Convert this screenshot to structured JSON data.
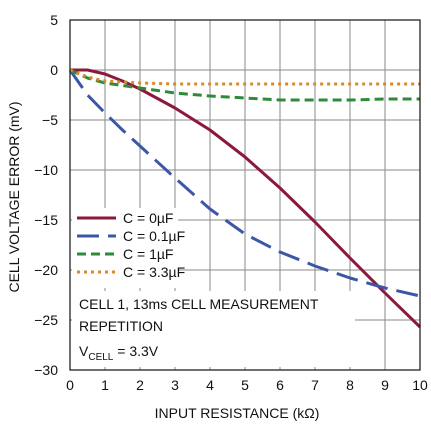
{
  "chart_data": {
    "type": "line",
    "title": "",
    "xlabel": "INPUT RESISTANCE (kΩ)",
    "ylabel": "CELL VOLTAGE ERROR (mV)",
    "xlim": [
      0,
      10
    ],
    "ylim": [
      -30,
      5
    ],
    "x_ticks": [
      "0",
      "1",
      "2",
      "3",
      "4",
      "5",
      "6",
      "7",
      "8",
      "9",
      "10"
    ],
    "y_ticks": [
      "5",
      "0",
      "−5",
      "−10",
      "−15",
      "−20",
      "−25",
      "−30"
    ],
    "grid": true,
    "legend_position": "lower-left",
    "series": [
      {
        "name": "C = 0µF",
        "color": "#8b1a3a",
        "dash": "solid",
        "x": [
          0,
          0.5,
          1,
          1.5,
          2,
          3,
          4,
          5,
          6,
          7,
          8,
          9,
          10
        ],
        "y": [
          0,
          0,
          -0.4,
          -1.1,
          -1.9,
          -3.8,
          -6.0,
          -8.7,
          -11.8,
          -15.2,
          -18.8,
          -22.3,
          -25.7
        ]
      },
      {
        "name": "C = 0.1µF",
        "color": "#3b57a6",
        "dash": "long-dash",
        "x": [
          0,
          0.5,
          1,
          1.5,
          2,
          3,
          4,
          5,
          6,
          7,
          8,
          9,
          10
        ],
        "y": [
          0,
          -2.5,
          -4.3,
          -6.0,
          -7.6,
          -10.8,
          -13.9,
          -16.4,
          -18.2,
          -19.6,
          -20.8,
          -21.8,
          -22.6
        ]
      },
      {
        "name": "C = 1µF",
        "color": "#2e8b3a",
        "dash": "dash",
        "x": [
          0,
          0.5,
          1,
          2,
          3,
          4,
          5,
          6,
          7,
          8,
          9,
          10
        ],
        "y": [
          0,
          -0.8,
          -1.3,
          -1.8,
          -2.3,
          -2.6,
          -2.8,
          -3.0,
          -3.0,
          -3.0,
          -2.9,
          -2.9
        ]
      },
      {
        "name": "C = 3.3µF",
        "color": "#d9892b",
        "dash": "dot",
        "x": [
          0,
          0.5,
          1,
          2,
          3,
          4,
          5,
          6,
          7,
          8,
          9,
          10
        ],
        "y": [
          0,
          -0.7,
          -1.1,
          -1.3,
          -1.4,
          -1.4,
          -1.4,
          -1.4,
          -1.4,
          -1.4,
          -1.4,
          -1.4
        ]
      }
    ],
    "annotation_lines": [
      {
        "main": "CELL 1, 13ms CELL MEASUREMENT"
      },
      {
        "main": "REPETITION"
      },
      {
        "main": "V",
        "sub": "CELL",
        "rest": " = 3.3V"
      }
    ]
  }
}
